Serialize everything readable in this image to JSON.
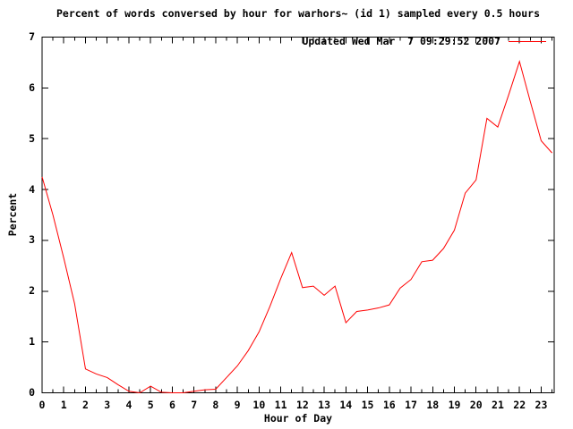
{
  "title": "Percent of words conversed by hour for warhors~ (id 1) sampled every 0.5 hours",
  "legend": {
    "label": "Updated Wed Mar  7 09:29:52 2007",
    "line_color": "#ff0000",
    "position": "top-right-inside"
  },
  "axes": {
    "x_label": "Hour of Day",
    "y_label": "Percent",
    "x_tick_labels": [
      "0",
      "1",
      "2",
      "3",
      "4",
      "5",
      "6",
      "7",
      "8",
      "9",
      "10",
      "11",
      "12",
      "13",
      "14",
      "15",
      "16",
      "17",
      "18",
      "19",
      "20",
      "21",
      "22",
      "23"
    ],
    "y_tick_labels": [
      "0",
      "1",
      "2",
      "3",
      "4",
      "5",
      "6",
      "7"
    ]
  },
  "colors": {
    "line": "#ff0000",
    "axis": "#000000",
    "background": "#ffffff",
    "text": "#000000"
  },
  "chart_data": {
    "type": "line",
    "title": "Percent of words conversed by hour for warhors~ (id 1) sampled every 0.5 hours",
    "xlabel": "Hour of Day",
    "ylabel": "Percent",
    "xlim": [
      0,
      23.6
    ],
    "ylim": [
      0,
      7
    ],
    "x_major_ticks": [
      0,
      1,
      2,
      3,
      4,
      5,
      6,
      7,
      8,
      9,
      10,
      11,
      12,
      13,
      14,
      15,
      16,
      17,
      18,
      19,
      20,
      21,
      22,
      23
    ],
    "x_minor_tick_step": 0.5,
    "y_major_ticks": [
      0,
      1,
      2,
      3,
      4,
      5,
      6,
      7
    ],
    "grid": false,
    "legend_position": "top-right-inside",
    "sample_interval_hours": 0.5,
    "series": [
      {
        "name": "Updated Wed Mar  7 09:29:52 2007",
        "color": "#ff0000",
        "x": [
          0,
          0.5,
          1,
          1.5,
          2,
          2.5,
          3,
          3.5,
          4,
          4.5,
          5,
          5.5,
          6,
          6.5,
          7,
          7.5,
          8,
          8.5,
          9,
          9.5,
          10,
          10.5,
          11,
          11.5,
          12,
          12.5,
          13,
          13.5,
          14,
          14.5,
          15,
          15.5,
          16,
          16.5,
          17,
          17.5,
          18,
          18.5,
          19,
          19.5,
          20,
          20.5,
          21,
          21.5,
          22,
          22.5,
          23,
          23.5
        ],
        "y": [
          4.25,
          3.5,
          2.65,
          1.75,
          0.47,
          0.37,
          0.3,
          0.16,
          0.03,
          0.0,
          0.13,
          0.01,
          0.0,
          0.0,
          0.03,
          0.06,
          0.07,
          0.3,
          0.53,
          0.83,
          1.2,
          1.7,
          2.25,
          2.76,
          2.07,
          2.1,
          1.92,
          2.1,
          1.38,
          1.6,
          1.63,
          1.67,
          1.73,
          2.06,
          2.23,
          2.58,
          2.61,
          2.84,
          3.2,
          3.93,
          4.19,
          5.4,
          5.23,
          5.86,
          6.52,
          5.73,
          4.96,
          4.72
        ]
      }
    ]
  }
}
